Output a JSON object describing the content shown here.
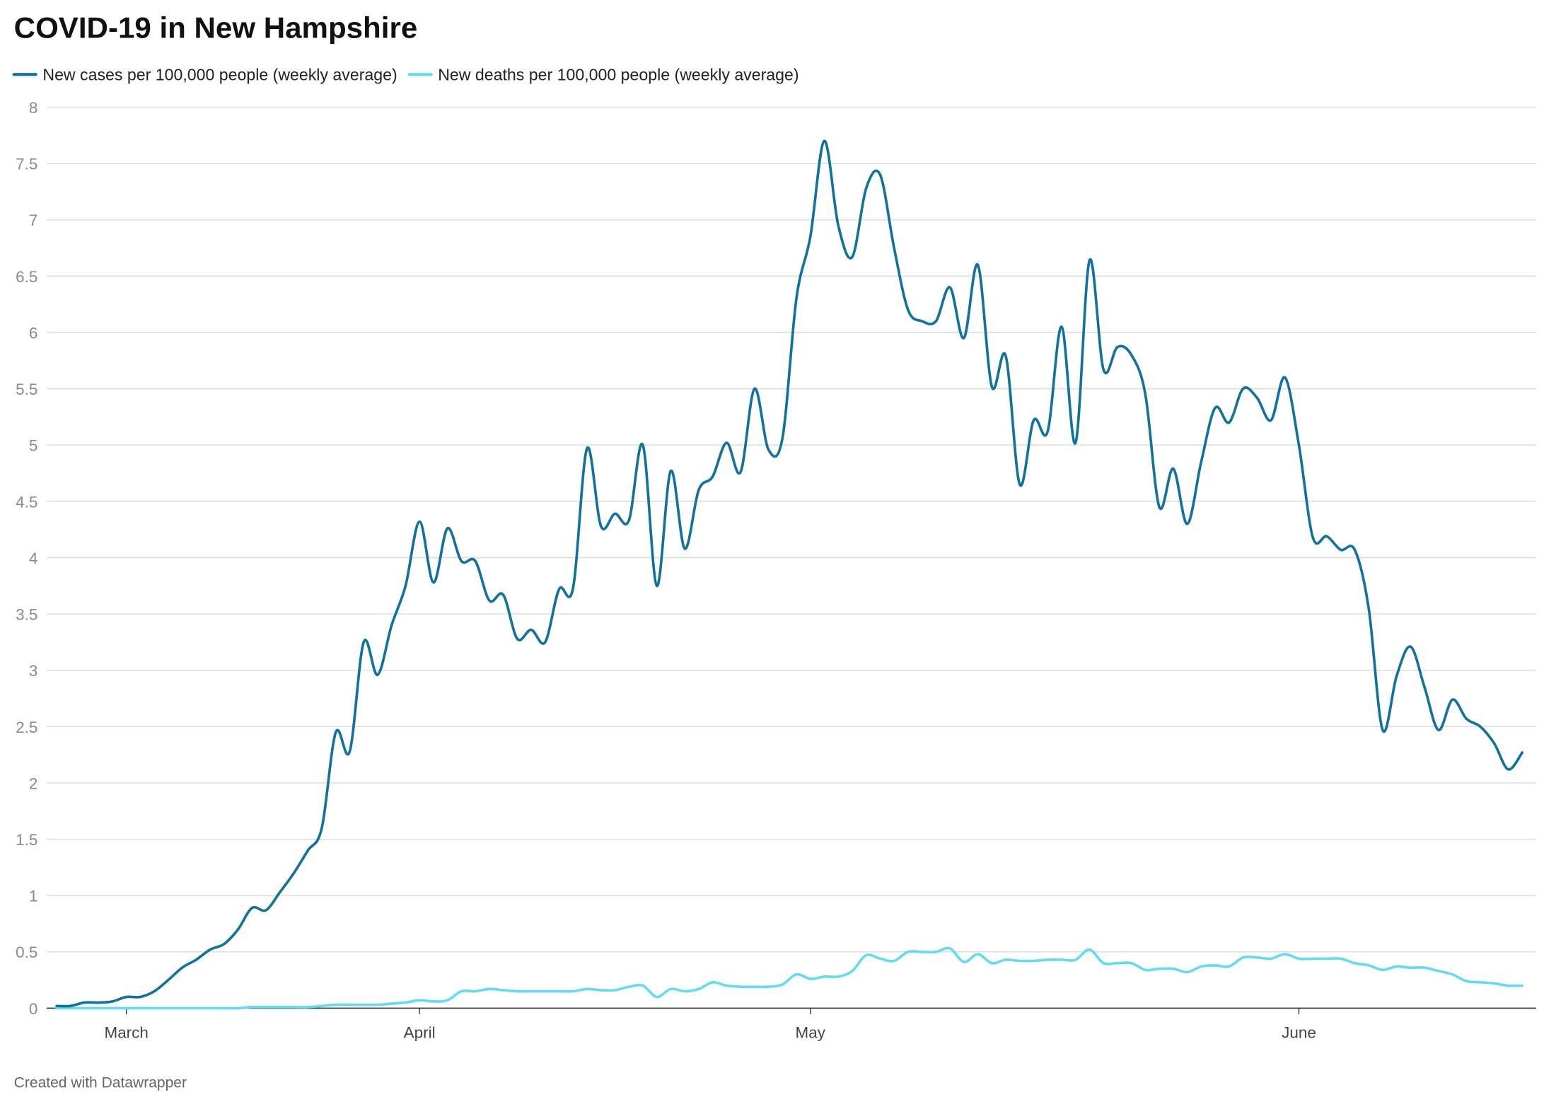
{
  "chart_data": {
    "type": "line",
    "title": "COVID-19 in New Hampshire",
    "footer": "Created with Datawrapper",
    "categories": [
      null,
      null,
      null,
      null,
      null,
      "March",
      null,
      null,
      null,
      null,
      null,
      null,
      null,
      null,
      null,
      null,
      null,
      null,
      null,
      null,
      null,
      null,
      null,
      null,
      null,
      null,
      "April",
      null,
      null,
      null,
      null,
      null,
      null,
      null,
      null,
      null,
      null,
      null,
      null,
      null,
      null,
      null,
      null,
      null,
      null,
      null,
      null,
      null,
      null,
      null,
      null,
      null,
      null,
      null,
      "May",
      null,
      null,
      null,
      null,
      null,
      null,
      null,
      null,
      null,
      null,
      null,
      null,
      null,
      null,
      null,
      null,
      null,
      null,
      null,
      null,
      null,
      null,
      null,
      null,
      null,
      null,
      null,
      null,
      null,
      null,
      null,
      null,
      null,
      null,
      "June",
      null,
      null,
      null,
      null,
      null,
      null,
      null,
      null,
      null,
      null,
      null,
      null,
      null,
      null,
      null,
      null
    ],
    "series": [
      {
        "name": "New cases per 100,000 people (weekly average)",
        "color": "#10729f",
        "values": [
          0.02,
          0.02,
          0.05,
          0.05,
          0.06,
          0.1,
          0.1,
          0.15,
          0.25,
          0.36,
          0.43,
          0.52,
          0.57,
          0.7,
          0.89,
          0.87,
          1.03,
          1.2,
          1.4,
          1.6,
          2.45,
          2.28,
          3.25,
          2.96,
          3.4,
          3.75,
          4.32,
          3.78,
          4.26,
          3.97,
          3.97,
          3.62,
          3.67,
          3.28,
          3.36,
          3.25,
          3.72,
          3.73,
          4.97,
          4.28,
          4.39,
          4.33,
          5.0,
          3.75,
          4.77,
          4.08,
          4.6,
          4.72,
          5.02,
          4.76,
          5.5,
          4.96,
          5.06,
          6.3,
          6.85,
          7.7,
          6.95,
          6.67,
          7.28,
          7.4,
          6.75,
          6.2,
          6.1,
          6.1,
          6.4,
          5.95,
          6.6,
          5.52,
          5.79,
          4.65,
          5.22,
          5.12,
          6.05,
          5.02,
          6.64,
          5.67,
          5.87,
          5.8,
          5.45,
          4.45,
          4.79,
          4.3,
          4.85,
          5.33,
          5.2,
          5.5,
          5.42,
          5.22,
          5.6,
          5.0,
          4.18,
          4.19,
          4.07,
          4.07,
          3.55,
          2.47,
          2.95,
          3.21,
          2.85,
          2.47,
          2.74,
          2.57,
          2.5,
          2.35,
          2.12,
          2.27
        ]
      },
      {
        "name": "New deaths per 100,000 people (weekly average)",
        "color": "#63dbf5",
        "values": [
          0,
          0,
          0,
          0,
          0,
          0,
          0,
          0,
          0,
          0,
          0,
          0,
          0,
          0,
          0.01,
          0.01,
          0.01,
          0.01,
          0.01,
          0.02,
          0.03,
          0.03,
          0.03,
          0.03,
          0.04,
          0.05,
          0.07,
          0.06,
          0.07,
          0.15,
          0.15,
          0.17,
          0.16,
          0.15,
          0.15,
          0.15,
          0.15,
          0.15,
          0.17,
          0.16,
          0.16,
          0.19,
          0.2,
          0.1,
          0.17,
          0.15,
          0.17,
          0.23,
          0.2,
          0.19,
          0.19,
          0.19,
          0.21,
          0.3,
          0.26,
          0.28,
          0.28,
          0.33,
          0.47,
          0.44,
          0.42,
          0.5,
          0.5,
          0.5,
          0.53,
          0.41,
          0.48,
          0.4,
          0.43,
          0.42,
          0.42,
          0.43,
          0.43,
          0.43,
          0.52,
          0.4,
          0.4,
          0.4,
          0.34,
          0.35,
          0.35,
          0.32,
          0.37,
          0.38,
          0.37,
          0.45,
          0.45,
          0.44,
          0.48,
          0.44,
          0.44,
          0.44,
          0.44,
          0.4,
          0.38,
          0.34,
          0.37,
          0.36,
          0.36,
          0.33,
          0.3,
          0.24,
          0.23,
          0.22,
          0.2,
          0.2
        ]
      }
    ],
    "ylim": [
      0,
      8
    ],
    "yticks": [
      0,
      0.5,
      1,
      1.5,
      2,
      2.5,
      3,
      3.5,
      4,
      4.5,
      5,
      5.5,
      6,
      6.5,
      7,
      7.5,
      8
    ],
    "grid": true,
    "legend": "top"
  }
}
